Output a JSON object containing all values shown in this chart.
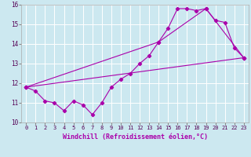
{
  "xlabel": "Windchill (Refroidissement éolien,°C)",
  "bg_color": "#cce8f0",
  "line_color": "#aa00aa",
  "grid_color": "#ffffff",
  "xlim": [
    -0.5,
    23.5
  ],
  "ylim": [
    10.0,
    16.0
  ],
  "xtick_labels": [
    "0",
    "1",
    "2",
    "3",
    "4",
    "5",
    "6",
    "7",
    "8",
    "9",
    "10",
    "11",
    "12",
    "13",
    "14",
    "15",
    "16",
    "17",
    "18",
    "19",
    "20",
    "21",
    "22",
    "23"
  ],
  "xtick_vals": [
    0,
    1,
    2,
    3,
    4,
    5,
    6,
    7,
    8,
    9,
    10,
    11,
    12,
    13,
    14,
    15,
    16,
    17,
    18,
    19,
    20,
    21,
    22,
    23
  ],
  "ytick_vals": [
    10,
    11,
    12,
    13,
    14,
    15,
    16
  ],
  "series1_x": [
    0,
    1,
    2,
    3,
    4,
    5,
    6,
    7,
    8,
    9,
    10,
    11,
    12,
    13,
    14,
    15,
    16,
    17,
    18,
    19,
    20,
    21,
    22,
    23
  ],
  "series1_y": [
    11.8,
    11.6,
    11.1,
    11.0,
    10.6,
    11.1,
    10.9,
    10.4,
    11.0,
    11.8,
    12.2,
    12.5,
    13.0,
    13.4,
    14.1,
    14.8,
    15.8,
    15.8,
    15.7,
    15.8,
    15.2,
    15.1,
    13.8,
    13.3
  ],
  "series2_x": [
    0,
    23
  ],
  "series2_y": [
    11.8,
    13.3
  ],
  "series3_x": [
    0,
    14,
    19,
    23
  ],
  "series3_y": [
    11.8,
    14.1,
    15.8,
    13.3
  ]
}
